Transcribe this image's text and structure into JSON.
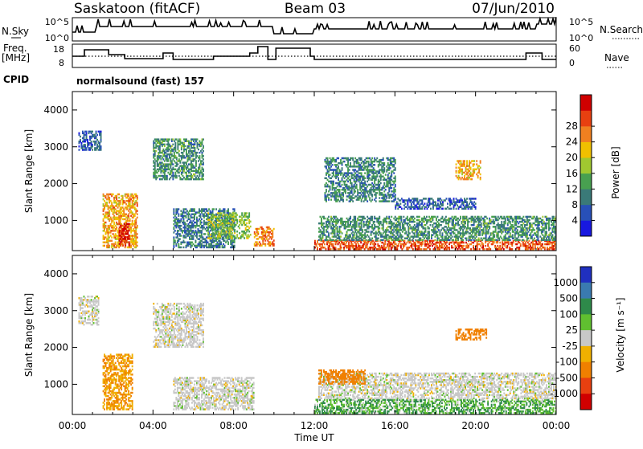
{
  "header": {
    "station": "Saskatoon (fitACF)",
    "beam": "Beam 03",
    "date": "07/Jun/2010"
  },
  "panels": {
    "nsky": {
      "label": "N.Sky",
      "ticks": [
        "10^5",
        "10^0"
      ],
      "right_label": "N.Search",
      "right_ticks": [
        "10^5",
        "10^0"
      ]
    },
    "freq": {
      "label_line1": "Freq.",
      "label_line2": "[MHz]",
      "ticks": [
        "18",
        "8"
      ],
      "right_label": "Nave",
      "right_ticks": [
        "60",
        "0"
      ]
    },
    "cpid": {
      "label": "CPID",
      "value": "normalsound (fast) 157"
    }
  },
  "axes": {
    "ylabel": "Slant Range [km]",
    "xlabel": "Time UT",
    "xticks": [
      "00:00",
      "04:00",
      "08:00",
      "12:00",
      "16:00",
      "20:00",
      "00:00"
    ],
    "yticks": [
      "1000",
      "2000",
      "3000",
      "4000"
    ]
  },
  "colorbars": {
    "power": {
      "label": "Power [dB]",
      "ticks": [
        "4",
        "8",
        "12",
        "16",
        "20",
        "24",
        "28"
      ],
      "colors": [
        "#1818e0",
        "#2850b8",
        "#3a7a78",
        "#48a050",
        "#a0c830",
        "#f0c000",
        "#f08020",
        "#e84010",
        "#d00000"
      ]
    },
    "velocity": {
      "label": "Velocity [m s⁻¹]",
      "ticks": [
        "1000",
        "500",
        "100",
        "25",
        "-25",
        "-100",
        "-500",
        "-1000"
      ],
      "colors": [
        "#2030c0",
        "#3a7ab0",
        "#2e8a4a",
        "#60c030",
        "#c8c8c8",
        "#f0b000",
        "#f08000",
        "#e84010",
        "#d00000"
      ]
    }
  },
  "chart_data": {
    "type": "heatmap",
    "title": "Saskatoon (fitACF)  Beam 03  07/Jun/2010",
    "xlabel": "Time UT",
    "ylabel": "Slant Range [km]",
    "x_range_hours": [
      0,
      24
    ],
    "y_range_km": [
      180,
      4500
    ],
    "series": [
      {
        "name": "Power",
        "unit": "dB",
        "range": [
          0,
          30
        ],
        "regions": [
          {
            "t": [
              0.3,
              1.4
            ],
            "r": [
              2900,
              3400
            ],
            "level": 6
          },
          {
            "t": [
              1.5,
              3.2
            ],
            "r": [
              250,
              1700
            ],
            "level": 20
          },
          {
            "t": [
              2.3,
              2.8
            ],
            "r": [
              300,
              900
            ],
            "level": 28
          },
          {
            "t": [
              4.0,
              6.5
            ],
            "r": [
              2100,
              3200
            ],
            "level": 10
          },
          {
            "t": [
              5.0,
              8.0
            ],
            "r": [
              250,
              1300
            ],
            "level": 8
          },
          {
            "t": [
              6.7,
              8.8
            ],
            "r": [
              500,
              1200
            ],
            "level": 14
          },
          {
            "t": [
              9.0,
              10.0
            ],
            "r": [
              300,
              800
            ],
            "level": 22
          },
          {
            "t": [
              12.0,
              24.0
            ],
            "r": [
              200,
              450
            ],
            "level": 24
          },
          {
            "t": [
              12.2,
              24.0
            ],
            "r": [
              450,
              1100
            ],
            "level": 10
          },
          {
            "t": [
              12.5,
              16.0
            ],
            "r": [
              1500,
              2700
            ],
            "level": 9
          },
          {
            "t": [
              16.0,
              20.0
            ],
            "r": [
              1300,
              1600
            ],
            "level": 6
          },
          {
            "t": [
              19.0,
              20.2
            ],
            "r": [
              2100,
              2600
            ],
            "level": 20
          }
        ]
      },
      {
        "name": "Velocity",
        "unit": "m/s",
        "range": [
          -1000,
          1000
        ],
        "regions": [
          {
            "t": [
              0.3,
              1.3
            ],
            "r": [
              2600,
              3400
            ],
            "level": 0
          },
          {
            "t": [
              1.5,
              3.0
            ],
            "r": [
              300,
              1800
            ],
            "level": -100
          },
          {
            "t": [
              4.0,
              6.5
            ],
            "r": [
              2000,
              3200
            ],
            "level": 0
          },
          {
            "t": [
              5.0,
              9.0
            ],
            "r": [
              300,
              1200
            ],
            "level": 0
          },
          {
            "t": [
              12.0,
              24.0
            ],
            "r": [
              200,
              600
            ],
            "level": 50
          },
          {
            "t": [
              12.2,
              24.0
            ],
            "r": [
              600,
              1300
            ],
            "level": 0
          },
          {
            "t": [
              12.2,
              14.5
            ],
            "r": [
              1000,
              1400
            ],
            "level": -150
          },
          {
            "t": [
              19.0,
              20.5
            ],
            "r": [
              2200,
              2500
            ],
            "level": -150
          }
        ]
      }
    ],
    "data_gap_hours": [
      10.1,
      11.8
    ]
  }
}
